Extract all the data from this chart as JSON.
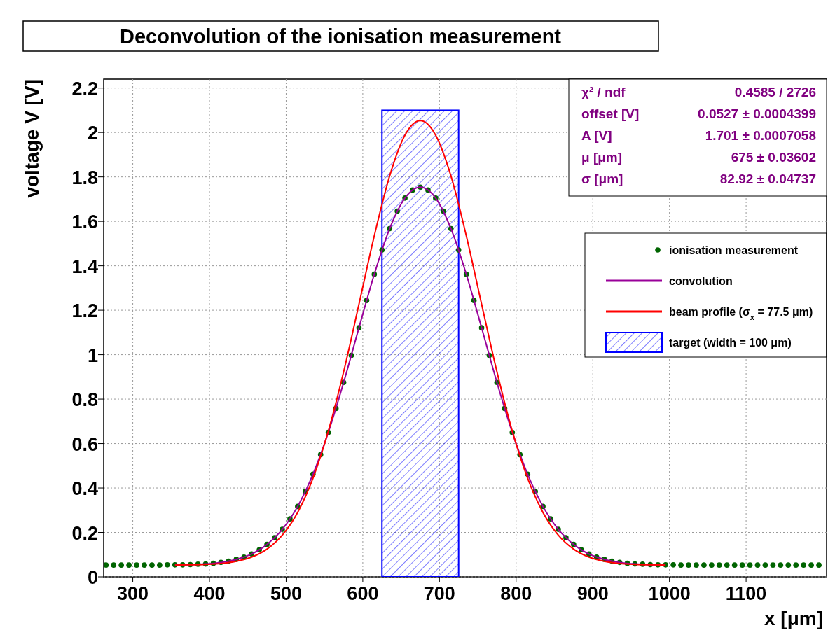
{
  "chart_data": {
    "type": "scatter",
    "title": "Deconvolution of the ionisation measurement",
    "xlabel": "x [μm]",
    "ylabel": "voltage V [V]",
    "xlim": [
      262,
      1205
    ],
    "ylim": [
      0,
      2.24
    ],
    "xticks": [
      300,
      400,
      500,
      600,
      700,
      800,
      900,
      1000,
      1100
    ],
    "yticks": [
      0,
      0.2,
      0.4,
      0.6,
      0.8,
      1,
      1.2,
      1.4,
      1.6,
      1.8,
      2,
      2.2
    ],
    "grid": true,
    "legend": "right",
    "annotations": [
      "χ² / ndf",
      "0.4585 / 2726",
      "offset [V]",
      "0.0527 ± 0.0004399",
      "A [V]",
      "1.701 ± 0.0007058",
      "μ [μm]",
      "675 ± 0.03602",
      "σ [μm]",
      "82.92 ± 0.04737"
    ],
    "series": [
      {
        "type": "histogram",
        "name": "target (width = 100 μm)",
        "color": "#0000ff",
        "bins": [
          625,
          725
        ],
        "values": [
          2.1
        ]
      },
      {
        "name": "ionisation measurement",
        "color": "#006400",
        "marker": "circle",
        "x": [
          265,
          275,
          285,
          295,
          305,
          315,
          325,
          335,
          345,
          355,
          365,
          375,
          385,
          395,
          405,
          415,
          425,
          435,
          445,
          455,
          465,
          475,
          485,
          495,
          505,
          515,
          525,
          535,
          545,
          555,
          565,
          575,
          585,
          595,
          605,
          615,
          625,
          635,
          645,
          655,
          665,
          675,
          685,
          695,
          705,
          715,
          725,
          735,
          745,
          755,
          765,
          775,
          785,
          795,
          805,
          815,
          825,
          835,
          845,
          855,
          865,
          875,
          885,
          895,
          905,
          915,
          925,
          935,
          945,
          955,
          965,
          975,
          985,
          995,
          1005,
          1015,
          1025,
          1035,
          1045,
          1055,
          1065,
          1075,
          1085,
          1095,
          1105,
          1115,
          1125,
          1135,
          1145,
          1155,
          1165,
          1175,
          1185,
          1195
        ],
        "values": [
          0.053,
          0.053,
          0.053,
          0.053,
          0.053,
          0.053,
          0.053,
          0.053,
          0.054,
          0.054,
          0.054,
          0.055,
          0.057,
          0.058,
          0.061,
          0.065,
          0.071,
          0.079,
          0.089,
          0.103,
          0.122,
          0.146,
          0.176,
          0.214,
          0.261,
          0.317,
          0.384,
          0.462,
          0.55,
          0.65,
          0.758,
          0.875,
          0.997,
          1.121,
          1.244,
          1.362,
          1.471,
          1.567,
          1.646,
          1.705,
          1.741,
          1.754,
          1.741,
          1.705,
          1.646,
          1.567,
          1.471,
          1.362,
          1.244,
          1.121,
          0.997,
          0.875,
          0.758,
          0.65,
          0.55,
          0.462,
          0.384,
          0.317,
          0.261,
          0.214,
          0.176,
          0.146,
          0.122,
          0.103,
          0.089,
          0.079,
          0.071,
          0.065,
          0.061,
          0.058,
          0.057,
          0.055,
          0.054,
          0.054,
          0.054,
          0.053,
          0.053,
          0.053,
          0.053,
          0.053,
          0.053,
          0.053,
          0.053,
          0.053,
          0.053,
          0.053,
          0.053,
          0.053,
          0.053,
          0.053,
          0.053,
          0.053,
          0.053,
          0.053
        ]
      },
      {
        "type": "line",
        "name": "convolution",
        "color": "#990099",
        "line_style": "solid",
        "x": [
          355,
          375,
          395,
          415,
          435,
          455,
          475,
          495,
          515,
          535,
          555,
          575,
          595,
          615,
          635,
          655,
          675,
          695,
          715,
          735,
          755,
          775,
          795,
          815,
          835,
          855,
          875,
          895,
          915,
          935,
          955,
          975,
          995
        ],
        "values": [
          0.054,
          0.055,
          0.058,
          0.065,
          0.079,
          0.103,
          0.146,
          0.214,
          0.317,
          0.462,
          0.65,
          0.875,
          1.121,
          1.362,
          1.567,
          1.705,
          1.754,
          1.705,
          1.567,
          1.362,
          1.121,
          0.875,
          0.65,
          0.462,
          0.317,
          0.214,
          0.146,
          0.103,
          0.079,
          0.065,
          0.058,
          0.055,
          0.054
        ]
      },
      {
        "type": "line",
        "name": "beam profile (σ$_{x}$ = 77.5 μm)",
        "color": "#ff0000",
        "line_style": "solid",
        "x": [
          355,
          375,
          395,
          415,
          435,
          455,
          475,
          495,
          515,
          535,
          555,
          575,
          595,
          615,
          635,
          655,
          675,
          695,
          715,
          735,
          755,
          775,
          795,
          815,
          835,
          855,
          875,
          895,
          915,
          935,
          955,
          975,
          995
        ],
        "values": [
          0.053,
          0.054,
          0.056,
          0.06,
          0.07,
          0.089,
          0.125,
          0.188,
          0.29,
          0.444,
          0.656,
          0.923,
          1.227,
          1.535,
          1.804,
          1.988,
          2.053,
          1.988,
          1.804,
          1.535,
          1.227,
          0.923,
          0.656,
          0.444,
          0.29,
          0.188,
          0.125,
          0.089,
          0.07,
          0.06,
          0.056,
          0.054,
          0.053
        ]
      }
    ]
  }
}
